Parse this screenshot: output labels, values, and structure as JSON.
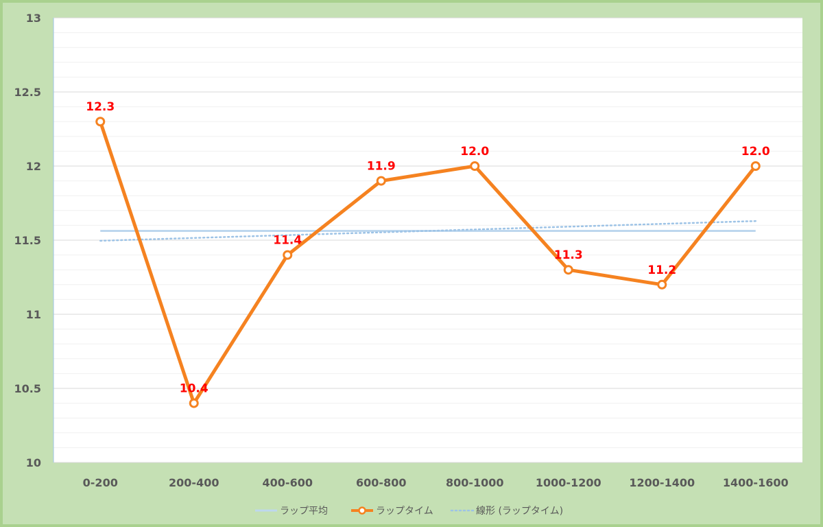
{
  "chart_data": {
    "type": "line",
    "categories": [
      "0-200",
      "200-400",
      "400-600",
      "600-800",
      "800-1000",
      "1000-1200",
      "1200-1400",
      "1400-1600"
    ],
    "ylim": [
      10,
      13
    ],
    "yticks": [
      "10",
      "10.5",
      "11",
      "11.5",
      "12",
      "12.5",
      "13"
    ],
    "grid": true,
    "legend_position": "bottom",
    "series": [
      {
        "name": "ラップ平均",
        "kind": "average",
        "color": "#bdd7ee",
        "values": [
          11.5625,
          11.5625,
          11.5625,
          11.5625,
          11.5625,
          11.5625,
          11.5625,
          11.5625
        ]
      },
      {
        "name": "ラップタイム",
        "kind": "main",
        "color": "#f58220",
        "values": [
          12.3,
          10.4,
          11.4,
          11.9,
          12.0,
          11.3,
          11.2,
          12.0
        ],
        "labels": [
          "12.3",
          "10.4",
          "11.4",
          "11.9",
          "12.0",
          "11.3",
          "11.2",
          "12.0"
        ]
      },
      {
        "name": "線形 (ラップタイム)",
        "kind": "trend",
        "color": "#9dc3e6",
        "values": [
          11.496,
          11.515,
          11.534,
          11.553,
          11.572,
          11.591,
          11.61,
          11.629
        ]
      }
    ],
    "label_color": "#ff0000"
  }
}
